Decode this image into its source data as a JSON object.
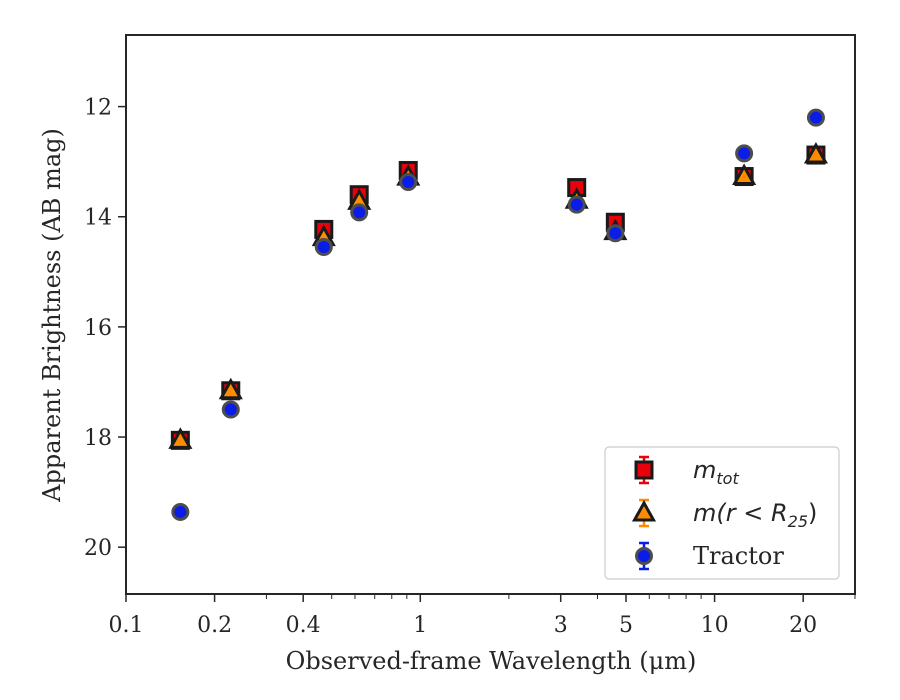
{
  "chart_data": {
    "type": "scatter",
    "title": "",
    "xlabel": "Observed-frame Wavelength (μm)",
    "ylabel": "Apparent Brightness (AB mag)",
    "x_scale": "log",
    "xlim": [
      0.1,
      30
    ],
    "ylim": [
      20.85,
      10.7
    ],
    "y_inverted": true,
    "grid": false,
    "x_ticks": [
      0.1,
      0.2,
      0.4,
      1,
      3,
      5,
      10,
      20
    ],
    "x_tick_labels": [
      "0.1",
      "0.2",
      "0.4",
      "1",
      "3",
      "5",
      "10",
      "20"
    ],
    "y_ticks": [
      12,
      14,
      16,
      18,
      20
    ],
    "y_tick_labels": [
      "12",
      "14",
      "16",
      "18",
      "20"
    ],
    "legend": {
      "placement": "lower-right",
      "entries": [
        {
          "series": 0,
          "label_main": "m",
          "label_sub": "tot",
          "label_tail": ""
        },
        {
          "series": 1,
          "label_main": "m(r < R",
          "label_sub": "25",
          "label_tail": ")"
        },
        {
          "series": 2,
          "label_main": "Tractor",
          "label_sub": "",
          "label_tail": ""
        }
      ]
    },
    "series": [
      {
        "marker": "square",
        "color": "#e8000b",
        "edge": "#1a1a1a",
        "x": [
          0.153,
          0.227,
          0.47,
          0.62,
          0.91,
          3.4,
          4.6,
          12.6,
          22.1
        ],
        "y": [
          18.06,
          17.16,
          14.23,
          13.6,
          13.16,
          13.47,
          14.1,
          13.27,
          12.88
        ]
      },
      {
        "marker": "triangle",
        "color": "#ff8c00",
        "edge": "#1a1a1a",
        "x": [
          0.153,
          0.227,
          0.47,
          0.62,
          0.91,
          3.4,
          4.6,
          12.6,
          22.1
        ],
        "y": [
          18.06,
          17.16,
          14.38,
          13.72,
          13.28,
          13.7,
          14.27,
          13.27,
          12.88
        ]
      },
      {
        "marker": "circle",
        "color": "#0a1de8",
        "edge": "#4d4d4d",
        "x": [
          0.153,
          0.227,
          0.47,
          0.62,
          0.91,
          3.4,
          4.6,
          12.6,
          22.1
        ],
        "y": [
          19.36,
          17.5,
          14.55,
          13.92,
          13.37,
          13.78,
          14.3,
          12.85,
          12.2
        ]
      }
    ]
  }
}
